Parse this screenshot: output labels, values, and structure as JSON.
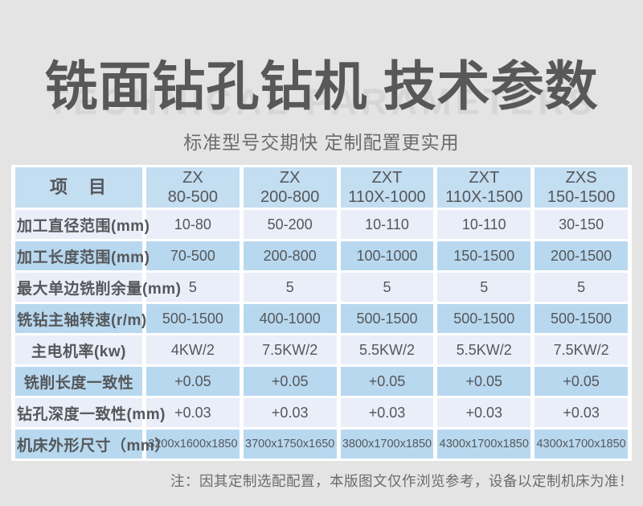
{
  "page": {
    "title": "铣面钻孔钻机 技术参数",
    "watermark": "TECHNICAL PARAMETERS",
    "subtitle": "标准型号交期快 定制配置更实用",
    "note": "注：因其定制选配配置，本版图文仅作浏览参考，设备以定制机床为准！"
  },
  "colors": {
    "page_background": "#e4e4e5",
    "table_header_blue": "#c3ddf1",
    "row_light_blue": "#eaeef9",
    "row_medium_blue": "#b8d8ef",
    "grid_gap_white": "#ffffff",
    "title_gray": "#585858",
    "watermark_gray": "#d6d6d6",
    "text_gray": "#55575a"
  },
  "table": {
    "header": [
      {
        "line1": "项　目",
        "line2": ""
      },
      {
        "line1": "ZX",
        "line2": "80-500"
      },
      {
        "line1": "ZX",
        "line2": "200-800"
      },
      {
        "line1": "ZXT",
        "line2": "110X-1000"
      },
      {
        "line1": "ZXT",
        "line2": "110X-1500"
      },
      {
        "line1": "ZXS",
        "line2": "150-1500"
      }
    ],
    "rows": [
      {
        "label": "加工直径范围(mm)",
        "values": [
          "10-80",
          "50-200",
          "10-110",
          "10-110",
          "30-150"
        ]
      },
      {
        "label": "加工长度范围(mm)",
        "values": [
          "70-500",
          "200-800",
          "100-1000",
          "150-1500",
          "200-1500"
        ]
      },
      {
        "label": "最大单边铣削余量(mm)",
        "values": [
          "5",
          "5",
          "5",
          "5",
          "5"
        ]
      },
      {
        "label": "铣钻主轴转速(r/m)",
        "values": [
          "500-1500",
          "400-1000",
          "500-1500",
          "500-1500",
          "500-1500"
        ]
      },
      {
        "label": "主电机率(kw)",
        "values": [
          "4KW/2",
          "7.5KW/2",
          "5.5KW/2",
          "5.5KW/2",
          "7.5KW/2"
        ]
      },
      {
        "label": "铣削长度一致性",
        "values": [
          "+0.05",
          "+0.05",
          "+0.05",
          "+0.05",
          "+0.05"
        ]
      },
      {
        "label": "钻孔深度一致性(mm)",
        "values": [
          "+0.03",
          "+0.03",
          "+0.03",
          "+0.03",
          "+0.03"
        ]
      },
      {
        "label": "机床外形尺寸（mm）",
        "values": [
          "3200x1600x1850",
          "3700x1750x1650",
          "3800x1700x1850",
          "4300x1700x1850",
          "4300x1700x1850"
        ]
      }
    ]
  }
}
